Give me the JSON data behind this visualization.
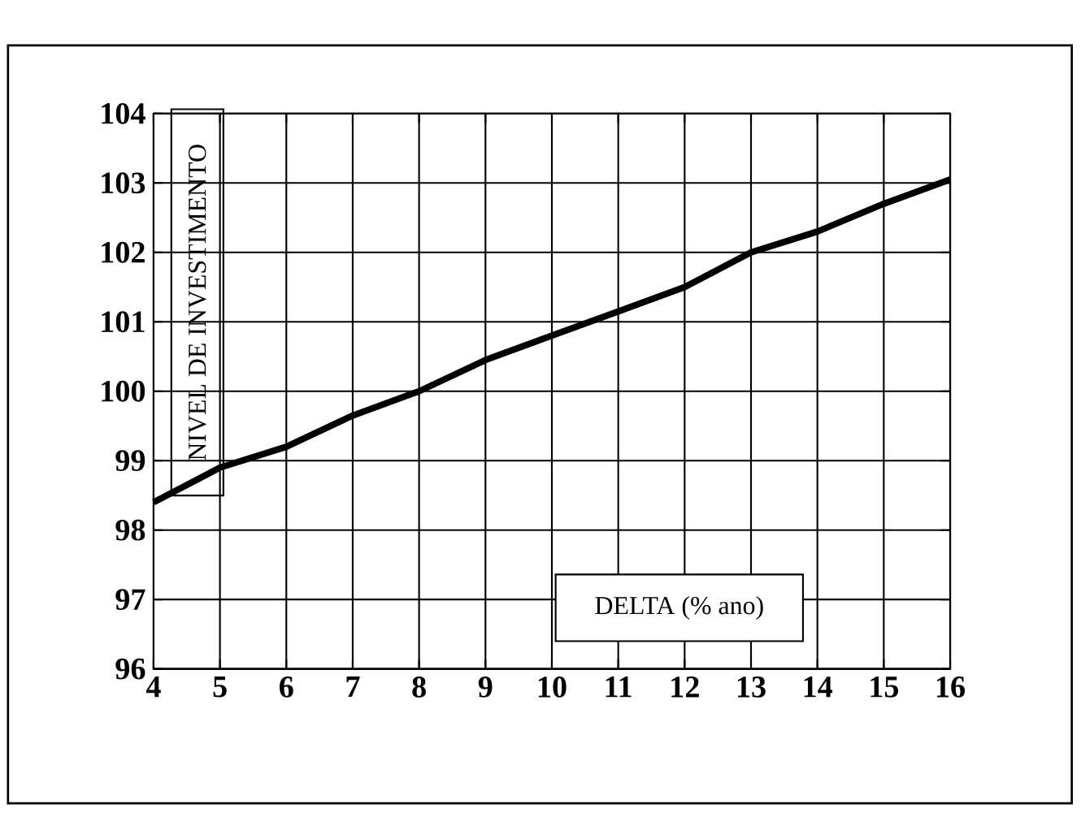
{
  "chart_data": {
    "type": "line",
    "xlabel": "DELTA (% ano)",
    "ylabel": "NIVEL DE INVESTIMENTO",
    "x": [
      4,
      5,
      6,
      7,
      8,
      9,
      10,
      11,
      12,
      13,
      14,
      15,
      16
    ],
    "series": [
      {
        "color": "#000000",
        "values": [
          98.4,
          98.9,
          99.2,
          99.65,
          100.0,
          100.45,
          100.8,
          101.15,
          101.5,
          102.0,
          102.3,
          102.7,
          103.05
        ]
      }
    ],
    "xlim": [
      4,
      16
    ],
    "xticks": [
      4,
      5,
      6,
      7,
      8,
      9,
      10,
      11,
      12,
      13,
      14,
      15,
      16
    ],
    "ylim": [
      96,
      104
    ],
    "yticks": [
      96,
      97,
      98,
      99,
      100,
      101,
      102,
      103,
      104
    ],
    "grid": true,
    "marker": "none",
    "line_style": "solid"
  }
}
